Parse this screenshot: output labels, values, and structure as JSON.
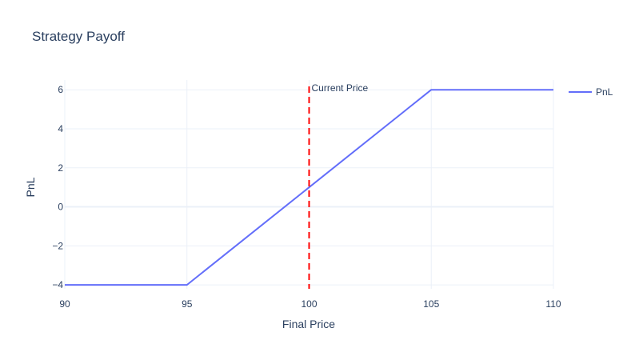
{
  "chart_data": {
    "type": "line",
    "title": "Strategy Payoff",
    "xlabel": "Final Price",
    "ylabel": "PnL",
    "xlim": [
      90,
      110
    ],
    "ylim": [
      -4.2,
      6.5
    ],
    "x_ticks": [
      90,
      95,
      100,
      105,
      110
    ],
    "y_ticks": [
      -4,
      -2,
      0,
      2,
      4,
      6
    ],
    "y_tick_labels": [
      "−4",
      "−2",
      "0",
      "2",
      "4",
      "6"
    ],
    "grid": true,
    "legend_position": "top-right",
    "series": [
      {
        "name": "PnL",
        "color": "#636efa",
        "x": [
          90,
          95,
          105,
          110
        ],
        "y": [
          -4,
          -4,
          6,
          6
        ]
      }
    ],
    "annotations": [
      {
        "type": "vertical-line",
        "x": 100,
        "label": "Current Price",
        "color": "#ff0000",
        "style": "dashed"
      }
    ]
  }
}
